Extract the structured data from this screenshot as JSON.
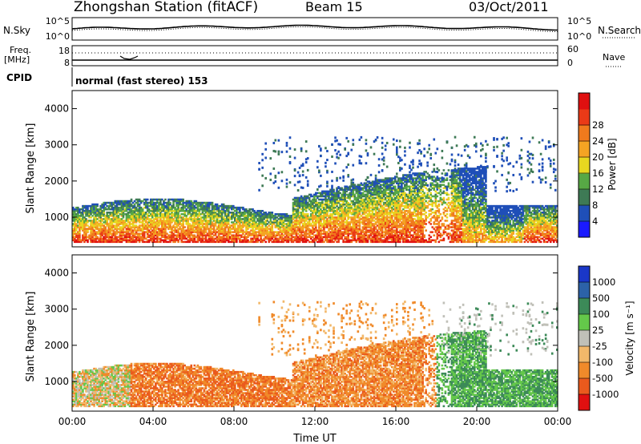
{
  "header": {
    "title": "Zhongshan Station (fitACF)",
    "beam": "Beam 15",
    "date": "03/Oct/2011"
  },
  "nsky_panel": {
    "left_label": "N.Sky",
    "left_ticks": [
      "10^5",
      "10^0"
    ],
    "right_ticks": [
      "10^5",
      "10^0"
    ],
    "right_legend": "N.Search"
  },
  "freq_panel": {
    "left_label_line1": "Freq.",
    "left_label_line2": "[MHz]",
    "left_ticks": [
      "18",
      "8"
    ],
    "right_ticks": [
      "60",
      "0"
    ],
    "right_legend": "Nave"
  },
  "cpid": {
    "label": "CPID",
    "mode": "normal (fast stereo) 153"
  },
  "chart_data": [
    {
      "type": "heatmap",
      "name": "power",
      "ylabel": "Slant Range [km]",
      "ylim": [
        180,
        4500
      ],
      "yticks": [
        "1000",
        "2000",
        "3000",
        "4000"
      ],
      "xticks": [
        "00:00",
        "04:00",
        "08:00",
        "12:00",
        "16:00",
        "20:00",
        "00:00"
      ],
      "colorbar": {
        "label": "Power [dB]",
        "ticks": [
          "4",
          "8",
          "12",
          "16",
          "20",
          "24",
          "28"
        ],
        "colors": [
          "#1a1aff",
          "#1f4fb8",
          "#3e7a55",
          "#57a845",
          "#e8d820",
          "#f5a423",
          "#f07a1d",
          "#ea3a17",
          "#e01010"
        ]
      }
    },
    {
      "type": "heatmap",
      "name": "velocity",
      "ylabel": "Slant Range [km]",
      "xlabel": "Time UT",
      "ylim": [
        180,
        4500
      ],
      "yticks": [
        "1000",
        "2000",
        "3000",
        "4000"
      ],
      "xticks": [
        "00:00",
        "04:00",
        "08:00",
        "12:00",
        "16:00",
        "20:00",
        "00:00"
      ],
      "colorbar": {
        "label": "Velocity [m s⁻¹]",
        "ticks": [
          "1000",
          "500",
          "100",
          "25",
          "-25",
          "-100",
          "-500",
          "-1000"
        ],
        "colors": [
          "#1a37c8",
          "#2c62a8",
          "#3c8a58",
          "#64c84a",
          "#c0c0b8",
          "#f2b86a",
          "#f08a2a",
          "#ea5a1d",
          "#e01010"
        ]
      }
    }
  ]
}
